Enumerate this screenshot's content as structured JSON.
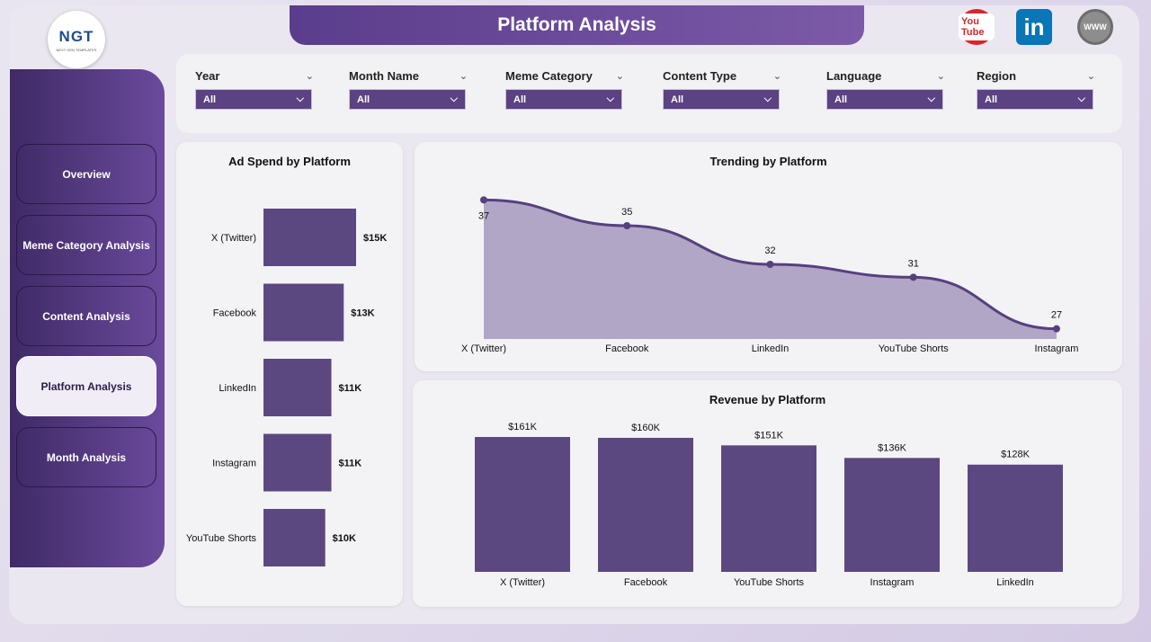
{
  "app": {
    "title": "Platform Analysis",
    "logo_text": "NGT",
    "logo_sub": "NEXT GEN TEMPLATES"
  },
  "social": {
    "youtube_label": "You Tube",
    "linkedin_label": "in",
    "web_label": "WWW"
  },
  "nav": [
    {
      "label": "Overview"
    },
    {
      "label": "Meme Category Analysis"
    },
    {
      "label": "Content Analysis"
    },
    {
      "label": "Platform Analysis"
    },
    {
      "label": "Month Analysis"
    }
  ],
  "filters": [
    {
      "label": "Year",
      "value": "All"
    },
    {
      "label": "Month Name",
      "value": "All"
    },
    {
      "label": "Meme Category",
      "value": "All"
    },
    {
      "label": "Content Type",
      "value": "All"
    },
    {
      "label": "Language",
      "value": "All"
    },
    {
      "label": "Region",
      "value": "All"
    }
  ],
  "colors": {
    "bar": "#5c4880",
    "line": "#56407f",
    "area": "#b1a6c6"
  },
  "chart_data": [
    {
      "type": "bar",
      "orientation": "horizontal",
      "title": "Ad Spend by Platform",
      "categories": [
        "X (Twitter)",
        "Facebook",
        "LinkedIn",
        "Instagram",
        "YouTube Shorts"
      ],
      "values": [
        15,
        13,
        11,
        11,
        10
      ],
      "labels": [
        "$15K",
        "$13K",
        "$11K",
        "$11K",
        "$10K"
      ]
    },
    {
      "type": "area",
      "title": "Trending by Platform",
      "categories": [
        "X (Twitter)",
        "Facebook",
        "LinkedIn",
        "YouTube Shorts",
        "Instagram"
      ],
      "values": [
        37,
        35,
        32,
        31,
        27
      ],
      "labels": [
        "37",
        "35",
        "32",
        "31",
        "27"
      ]
    },
    {
      "type": "bar",
      "title": "Revenue by Platform",
      "categories": [
        "X (Twitter)",
        "Facebook",
        "YouTube Shorts",
        "Instagram",
        "LinkedIn"
      ],
      "values": [
        161,
        160,
        151,
        136,
        128
      ],
      "labels": [
        "$161K",
        "$160K",
        "$151K",
        "$136K",
        "$128K"
      ]
    }
  ]
}
